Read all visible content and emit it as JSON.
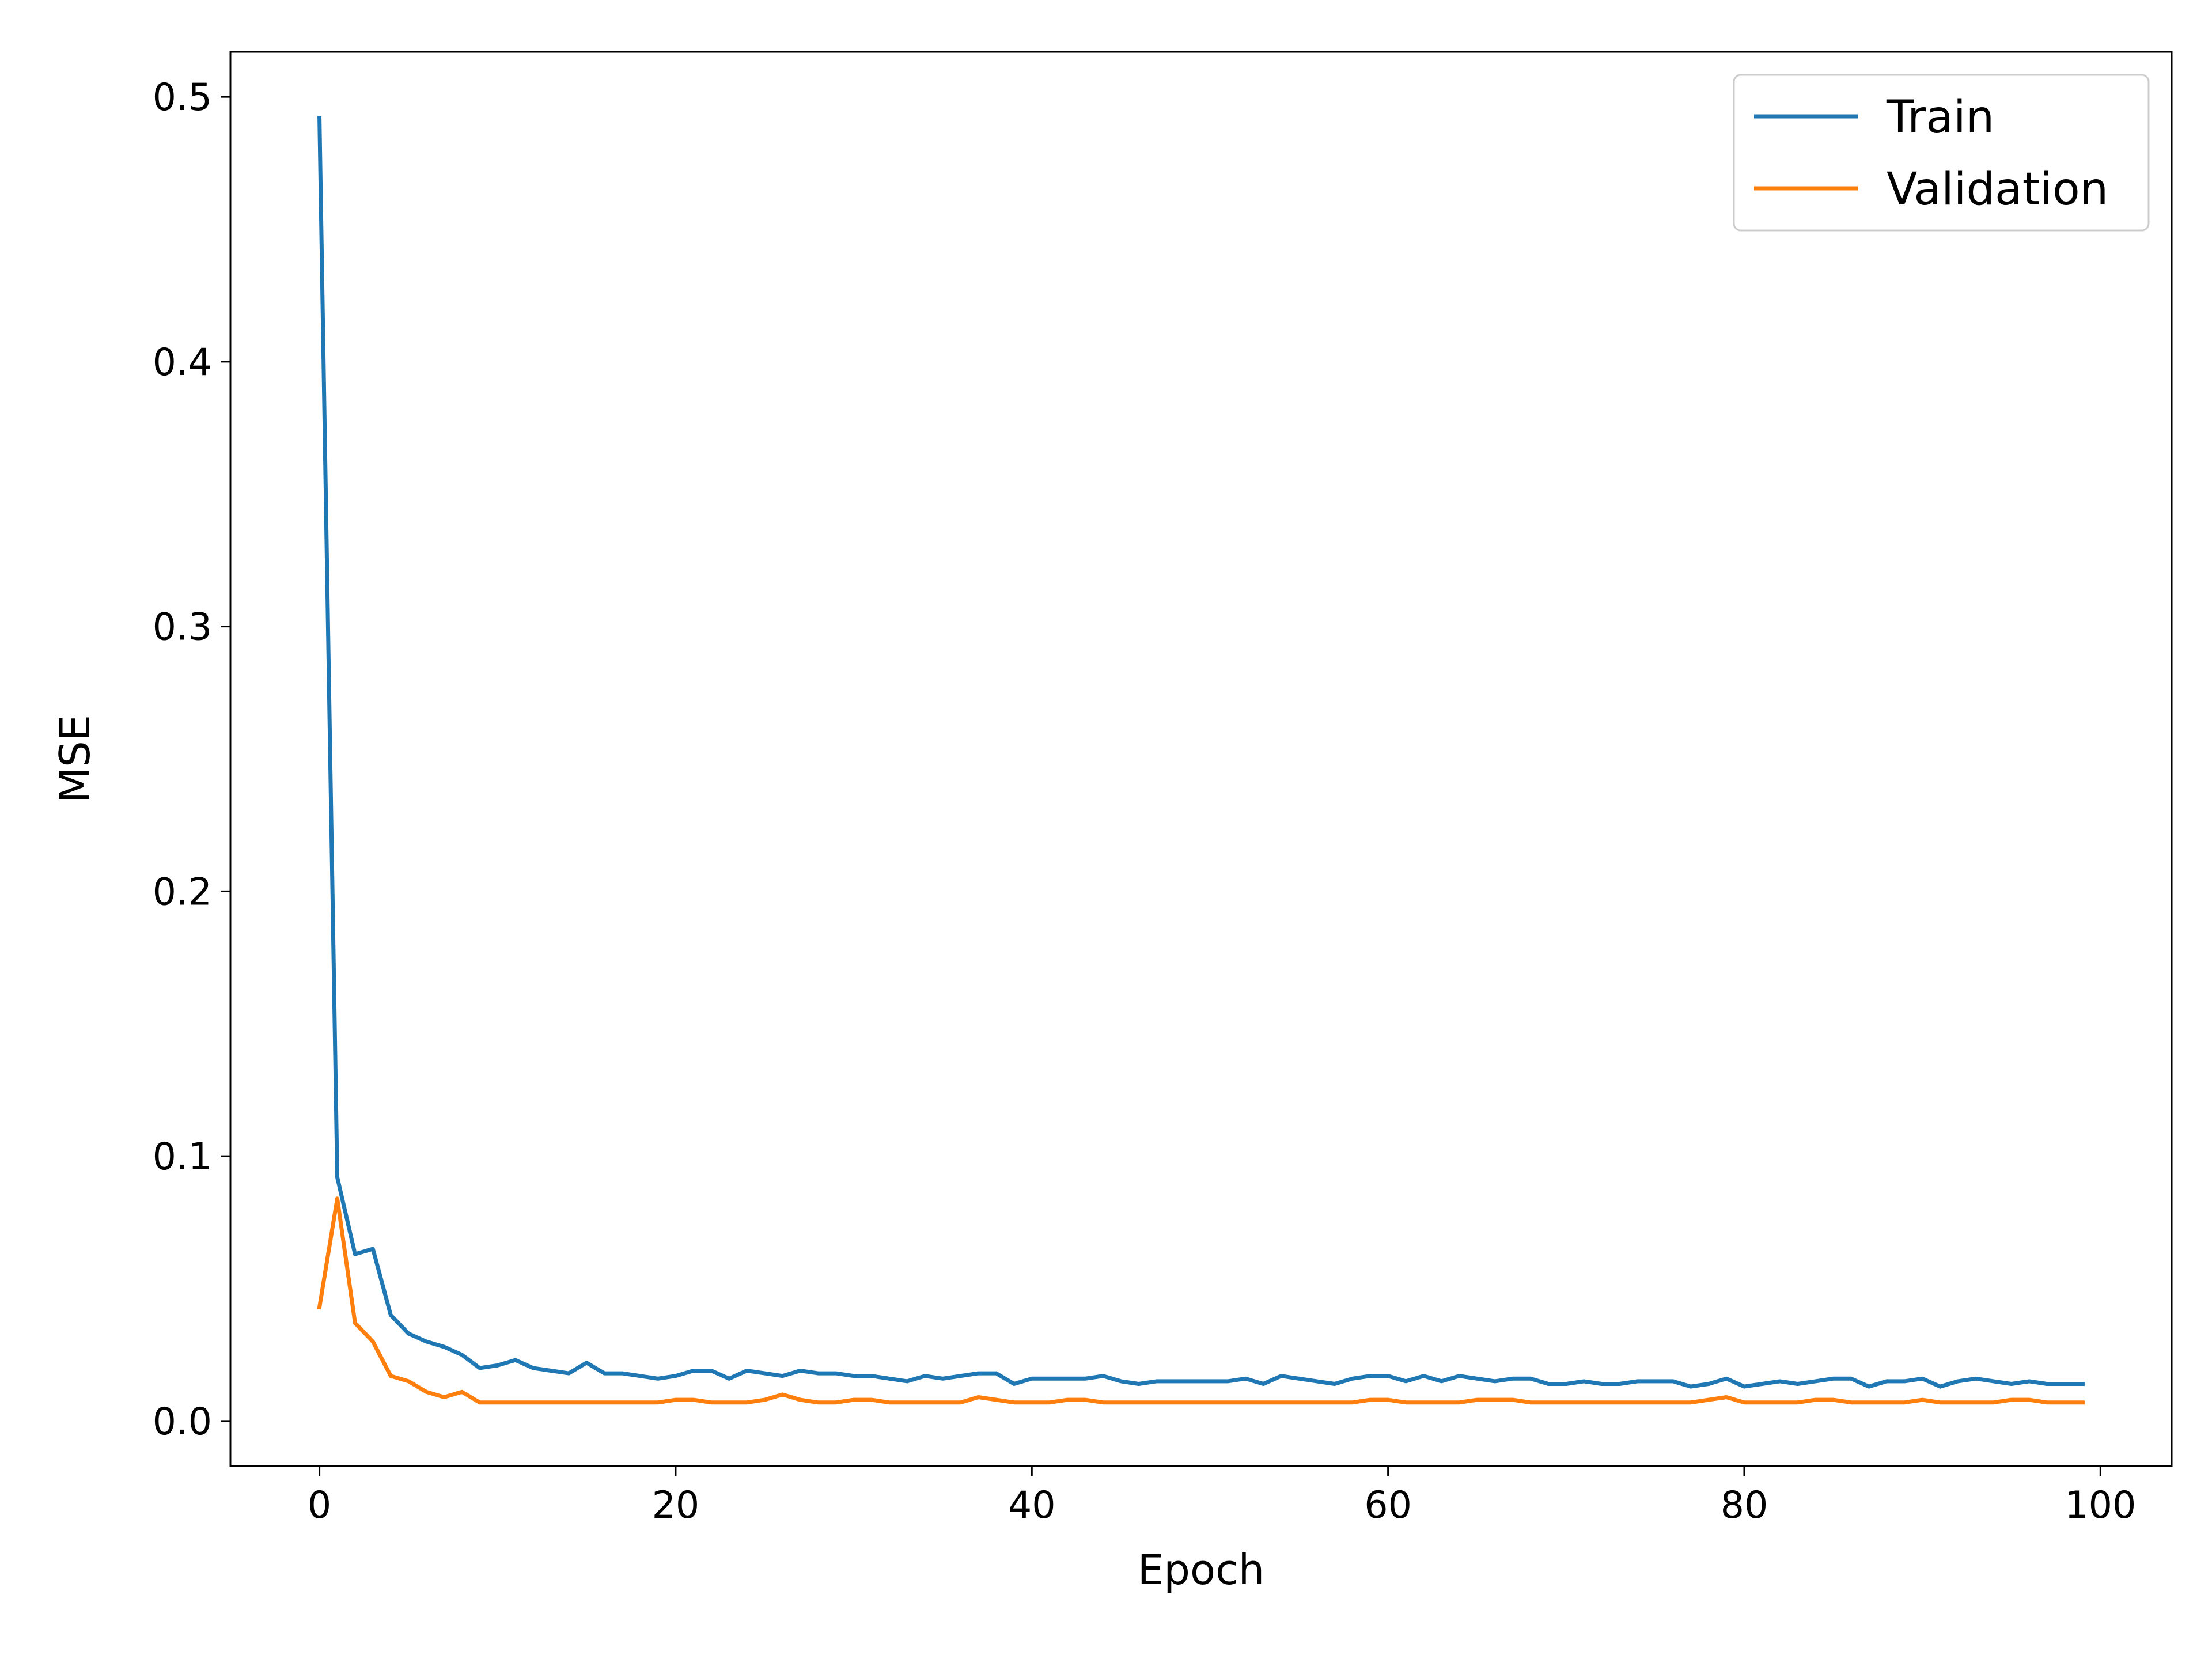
{
  "chart_data": {
    "type": "line",
    "xlabel": "Epoch",
    "ylabel": "MSE",
    "xlim": [
      -5,
      104
    ],
    "ylim": [
      -0.017,
      0.517
    ],
    "xticks": [
      0,
      20,
      40,
      60,
      80,
      100
    ],
    "yticks": [
      0.0,
      0.1,
      0.2,
      0.3,
      0.4,
      0.5
    ],
    "xtick_labels": [
      "0",
      "20",
      "40",
      "60",
      "80",
      "100"
    ],
    "ytick_labels": [
      "0.0",
      "0.1",
      "0.2",
      "0.3",
      "0.4",
      "0.5"
    ],
    "grid": false,
    "legend_position": "top-right",
    "series": [
      {
        "name": "Train",
        "color": "#1f77b4",
        "values": [
          0.492,
          0.092,
          0.063,
          0.065,
          0.04,
          0.033,
          0.03,
          0.028,
          0.025,
          0.02,
          0.021,
          0.023,
          0.02,
          0.019,
          0.018,
          0.022,
          0.018,
          0.018,
          0.017,
          0.016,
          0.017,
          0.019,
          0.019,
          0.016,
          0.019,
          0.018,
          0.017,
          0.019,
          0.018,
          0.018,
          0.017,
          0.017,
          0.016,
          0.015,
          0.017,
          0.016,
          0.017,
          0.018,
          0.018,
          0.014,
          0.016,
          0.016,
          0.016,
          0.016,
          0.017,
          0.015,
          0.014,
          0.015,
          0.015,
          0.015,
          0.015,
          0.015,
          0.016,
          0.014,
          0.017,
          0.016,
          0.015,
          0.014,
          0.016,
          0.017,
          0.017,
          0.015,
          0.017,
          0.015,
          0.017,
          0.016,
          0.015,
          0.016,
          0.016,
          0.014,
          0.014,
          0.015,
          0.014,
          0.014,
          0.015,
          0.015,
          0.015,
          0.013,
          0.014,
          0.016,
          0.013,
          0.014,
          0.015,
          0.014,
          0.015,
          0.016,
          0.016,
          0.013,
          0.015,
          0.015,
          0.016,
          0.013,
          0.015,
          0.016,
          0.015,
          0.014,
          0.015,
          0.014,
          0.014,
          0.014
        ]
      },
      {
        "name": "Validation",
        "color": "#ff7f0e",
        "values": [
          0.043,
          0.084,
          0.037,
          0.03,
          0.017,
          0.015,
          0.011,
          0.009,
          0.011,
          0.007,
          0.007,
          0.007,
          0.007,
          0.007,
          0.007,
          0.007,
          0.007,
          0.007,
          0.007,
          0.007,
          0.008,
          0.008,
          0.007,
          0.007,
          0.007,
          0.008,
          0.01,
          0.008,
          0.007,
          0.007,
          0.008,
          0.008,
          0.007,
          0.007,
          0.007,
          0.007,
          0.007,
          0.009,
          0.008,
          0.007,
          0.007,
          0.007,
          0.008,
          0.008,
          0.007,
          0.007,
          0.007,
          0.007,
          0.007,
          0.007,
          0.007,
          0.007,
          0.007,
          0.007,
          0.007,
          0.007,
          0.007,
          0.007,
          0.007,
          0.008,
          0.008,
          0.007,
          0.007,
          0.007,
          0.007,
          0.008,
          0.008,
          0.008,
          0.007,
          0.007,
          0.007,
          0.007,
          0.007,
          0.007,
          0.007,
          0.007,
          0.007,
          0.007,
          0.008,
          0.009,
          0.007,
          0.007,
          0.007,
          0.007,
          0.008,
          0.008,
          0.007,
          0.007,
          0.007,
          0.007,
          0.008,
          0.007,
          0.007,
          0.007,
          0.007,
          0.008,
          0.008,
          0.007,
          0.007,
          0.007
        ]
      }
    ]
  }
}
